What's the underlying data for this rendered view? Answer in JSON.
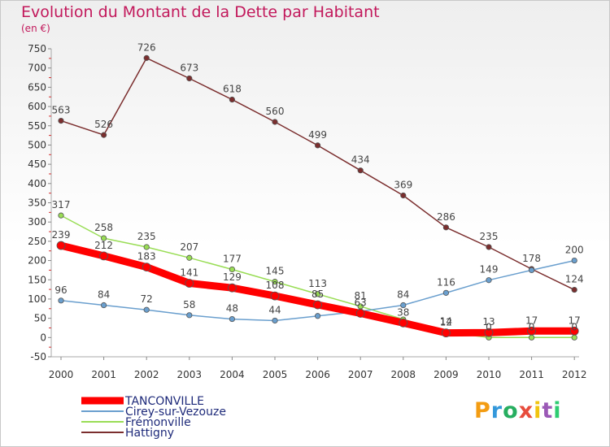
{
  "title": "Evolution du Montant de la Dette par Habitant",
  "subtitle": "(en €)",
  "logo": {
    "letters": [
      "P",
      "r",
      "o",
      "x",
      "i",
      "t",
      "i"
    ],
    "colors": [
      "#f39c12",
      "#3498db",
      "#27ae60",
      "#e74c3c",
      "#f1c40f",
      "#9b59b6",
      "#2ecc71"
    ]
  },
  "chart_data": {
    "type": "line",
    "title": "Evolution du Montant de la Dette par Habitant",
    "xlabel": "",
    "ylabel": "",
    "x": [
      "2000",
      "2001",
      "2002",
      "2003",
      "2004",
      "2005",
      "2006",
      "2007",
      "2008",
      "2009",
      "2010",
      "2011",
      "2012"
    ],
    "ylim": [
      -50,
      750
    ],
    "yticks": [
      -50,
      0,
      50,
      100,
      150,
      200,
      250,
      300,
      350,
      400,
      450,
      500,
      550,
      600,
      650,
      700,
      750
    ],
    "grid": false,
    "legend": "bottom-left",
    "series": [
      {
        "name": "TANCONVILLE",
        "color": "#ff0000",
        "width": 9,
        "values": [
          239,
          212,
          183,
          141,
          129,
          108,
          85,
          63,
          38,
          12,
          13,
          17,
          17
        ],
        "labels": [
          "239",
          "212",
          "183",
          "141",
          "129",
          "108",
          "85",
          "63",
          "38",
          "12",
          "13",
          "17",
          "17"
        ]
      },
      {
        "name": "Cirey-sur-Vezouze",
        "color": "#6a9fce",
        "width": 1.5,
        "values": [
          96,
          84,
          72,
          58,
          48,
          44,
          56,
          68,
          84,
          116,
          149,
          175,
          200
        ],
        "labels": [
          "96",
          "84",
          "72",
          "58",
          "48",
          "44",
          "",
          "",
          "84",
          "116",
          "149",
          "",
          "200"
        ]
      },
      {
        "name": "Frémonville",
        "color": "#99dd55",
        "width": 1.5,
        "values": [
          317,
          258,
          235,
          207,
          177,
          145,
          113,
          81,
          47,
          14,
          0,
          0,
          0
        ],
        "labels": [
          "317",
          "258",
          "235",
          "207",
          "177",
          "145",
          "113",
          "81",
          "",
          "14",
          "0",
          "0",
          "0"
        ]
      },
      {
        "name": "Hattigny",
        "color": "#7b2e2e",
        "width": 1.5,
        "values": [
          563,
          526,
          726,
          673,
          618,
          560,
          499,
          434,
          369,
          286,
          235,
          178,
          124
        ],
        "labels": [
          "563",
          "526",
          "726",
          "673",
          "618",
          "560",
          "499",
          "434",
          "369",
          "286",
          "235",
          "178",
          "124"
        ]
      }
    ]
  }
}
